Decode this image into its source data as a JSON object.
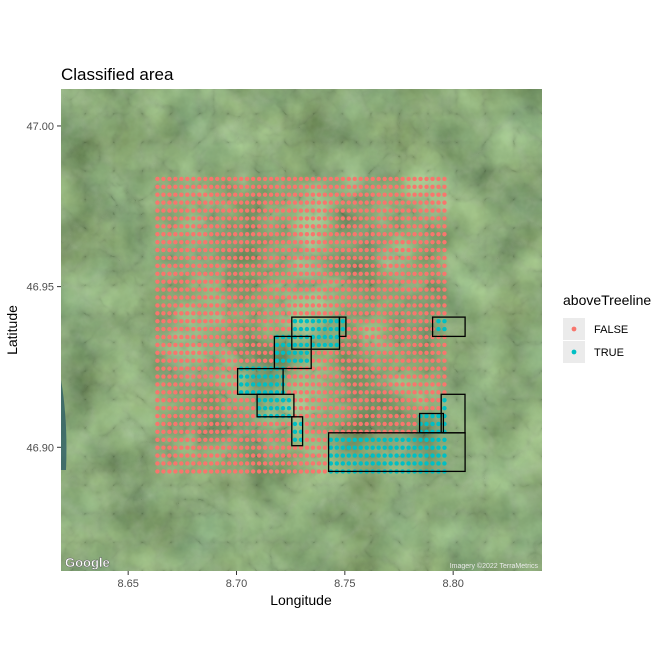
{
  "chart_data": {
    "type": "scatter",
    "title": "Classified area",
    "xlabel": "Longitude",
    "ylabel": "Latitude",
    "xlim": [
      8.619,
      8.841
    ],
    "ylim": [
      46.8615,
      47.0115
    ],
    "x_ticks": [
      "8.65",
      "8.70",
      "8.75",
      "8.80"
    ],
    "x_tick_values": [
      8.65,
      8.7,
      8.75,
      8.8
    ],
    "y_ticks": [
      "46.90",
      "46.95",
      "47.00"
    ],
    "y_tick_values": [
      46.9,
      46.95,
      47.0
    ],
    "grid": {
      "lon_start": 8.6635,
      "lon_step": 0.00276,
      "lon_count": 49,
      "lat_start": 46.8925,
      "lat_step": 0.00246,
      "lat_count": 38
    },
    "true_regions": [
      {
        "lon": [
          8.7255,
          8.7475
        ],
        "lat": [
          46.9305,
          46.9405
        ]
      },
      {
        "lon": [
          8.7475,
          8.7505
        ],
        "lat": [
          46.9345,
          46.9405
        ]
      },
      {
        "lon": [
          8.7175,
          8.7345
        ],
        "lat": [
          46.9245,
          46.9345
        ]
      },
      {
        "lon": [
          8.7005,
          8.7215
        ],
        "lat": [
          46.9165,
          46.9245
        ]
      },
      {
        "lon": [
          8.7095,
          8.7265
        ],
        "lat": [
          46.9095,
          46.9165
        ]
      },
      {
        "lon": [
          8.7255,
          8.7305
        ],
        "lat": [
          46.9005,
          46.9095
        ]
      },
      {
        "lon": [
          8.7845,
          8.7955
        ],
        "lat": [
          46.9045,
          46.9105
        ]
      },
      {
        "lon": [
          8.7945,
          8.8055
        ],
        "lat": [
          46.9045,
          46.9165
        ]
      },
      {
        "lon": [
          8.7425,
          8.8055
        ],
        "lat": [
          46.8925,
          46.9045
        ]
      },
      {
        "lon": [
          8.7905,
          8.8055
        ],
        "lat": [
          46.9345,
          46.9405
        ]
      }
    ],
    "series": [
      {
        "name": "FALSE",
        "color": "#F8766D"
      },
      {
        "name": "TRUE",
        "color": "#00BFC4"
      }
    ],
    "legend": {
      "title": "aboveTreeline",
      "position": "right"
    },
    "background": "satellite imagery",
    "attribution": {
      "logo": "Google",
      "imagery": "Imagery ©2022 TerraMetrics"
    }
  }
}
